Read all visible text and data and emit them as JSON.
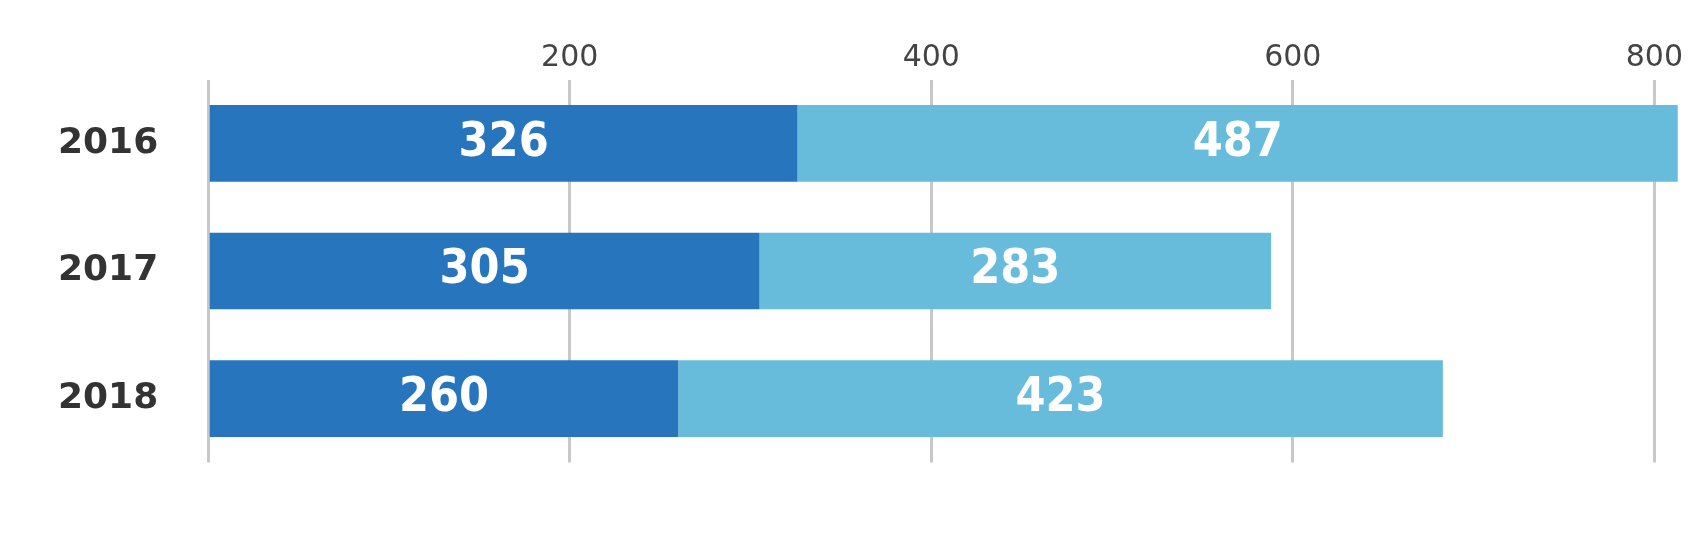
{
  "chart_data": {
    "type": "bar",
    "orientation": "horizontal",
    "stacked": true,
    "categories": [
      "2016",
      "2017",
      "2018"
    ],
    "series": [
      {
        "color": "#2775bd",
        "values": [
          326,
          305,
          260
        ]
      },
      {
        "color": "#68bcdb",
        "values": [
          487,
          283,
          423
        ]
      }
    ],
    "xlim": [
      0,
      813
    ],
    "xticks": [
      {
        "value": 0,
        "label": null
      },
      200,
      400,
      600,
      800
    ],
    "grid": "x",
    "data_labels": true,
    "legend": false
  }
}
